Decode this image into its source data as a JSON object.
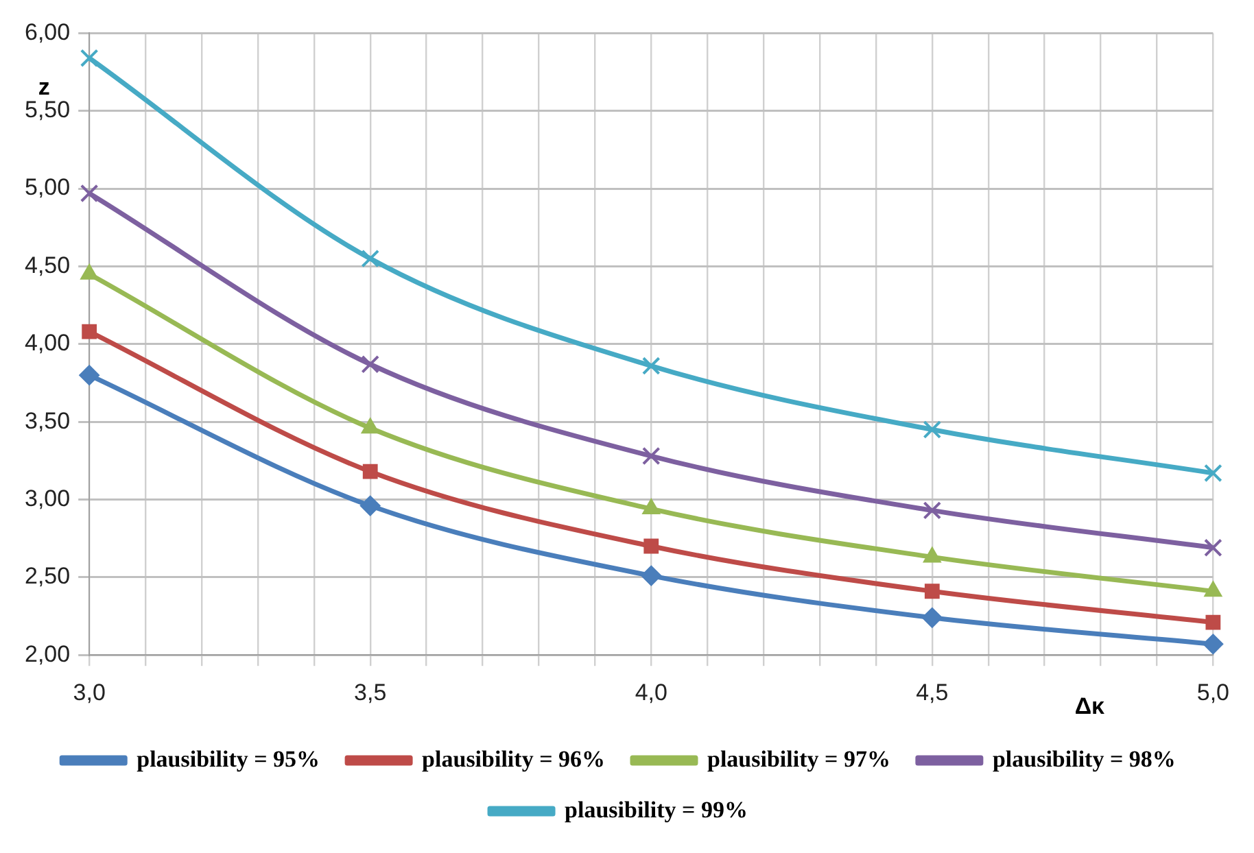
{
  "chart_data": {
    "type": "line",
    "xlabel": "Δκ",
    "ylabel": "z",
    "x": [
      3.0,
      3.5,
      4.0,
      4.5,
      5.0
    ],
    "xlim": [
      3.0,
      5.0
    ],
    "xticks": [
      {
        "value": 3.0,
        "label": "3,0"
      },
      {
        "value": 3.1,
        "label": null
      },
      {
        "value": 3.2,
        "label": null
      },
      {
        "value": 3.3,
        "label": null
      },
      {
        "value": 3.4,
        "label": null
      },
      {
        "value": 3.5,
        "label": "3,5"
      },
      {
        "value": 3.6,
        "label": null
      },
      {
        "value": 3.7,
        "label": null
      },
      {
        "value": 3.8,
        "label": null
      },
      {
        "value": 3.9,
        "label": null
      },
      {
        "value": 4.0,
        "label": "4,0"
      },
      {
        "value": 4.1,
        "label": null
      },
      {
        "value": 4.2,
        "label": null
      },
      {
        "value": 4.3,
        "label": null
      },
      {
        "value": 4.4,
        "label": null
      },
      {
        "value": 4.5,
        "label": "4,5"
      },
      {
        "value": 4.6,
        "label": null
      },
      {
        "value": 4.7,
        "label": null
      },
      {
        "value": 4.8,
        "label": null
      },
      {
        "value": 4.9,
        "label": null
      },
      {
        "value": 5.0,
        "label": "5,0"
      }
    ],
    "ylim": [
      2,
      6
    ],
    "yticks": [
      {
        "value": 2,
        "label": "2,00"
      },
      {
        "value": 2.5,
        "label": "2,50"
      },
      {
        "value": 3,
        "label": "3,00"
      },
      {
        "value": 3.5,
        "label": "3,50"
      },
      {
        "value": 4,
        "label": "4,00"
      },
      {
        "value": 4.5,
        "label": "4,50"
      },
      {
        "value": 5,
        "label": "5,00"
      },
      {
        "value": 5.5,
        "label": "5,50"
      },
      {
        "value": 6,
        "label": "6,00"
      }
    ],
    "grid": true,
    "legend": "bottom",
    "line_style": "solid",
    "series": [
      {
        "name": "plausibility = 95%",
        "color": "#4a7ebb",
        "marker": "diamond",
        "values": [
          3.8,
          2.96,
          2.51,
          2.24,
          2.07
        ]
      },
      {
        "name": "plausibility = 96%",
        "color": "#be4b48",
        "marker": "square",
        "values": [
          4.08,
          3.18,
          2.7,
          2.41,
          2.21
        ]
      },
      {
        "name": "plausibility = 97%",
        "color": "#98b954",
        "marker": "triangle",
        "values": [
          4.45,
          3.46,
          2.94,
          2.63,
          2.41
        ]
      },
      {
        "name": "plausibility = 98%",
        "color": "#7d60a0",
        "marker": "cross",
        "values": [
          4.97,
          3.87,
          3.28,
          2.93,
          2.69
        ]
      },
      {
        "name": "plausibility = 99%",
        "color": "#46aac5",
        "marker": "cross",
        "values": [
          5.84,
          4.55,
          3.86,
          3.45,
          3.17
        ]
      }
    ]
  }
}
